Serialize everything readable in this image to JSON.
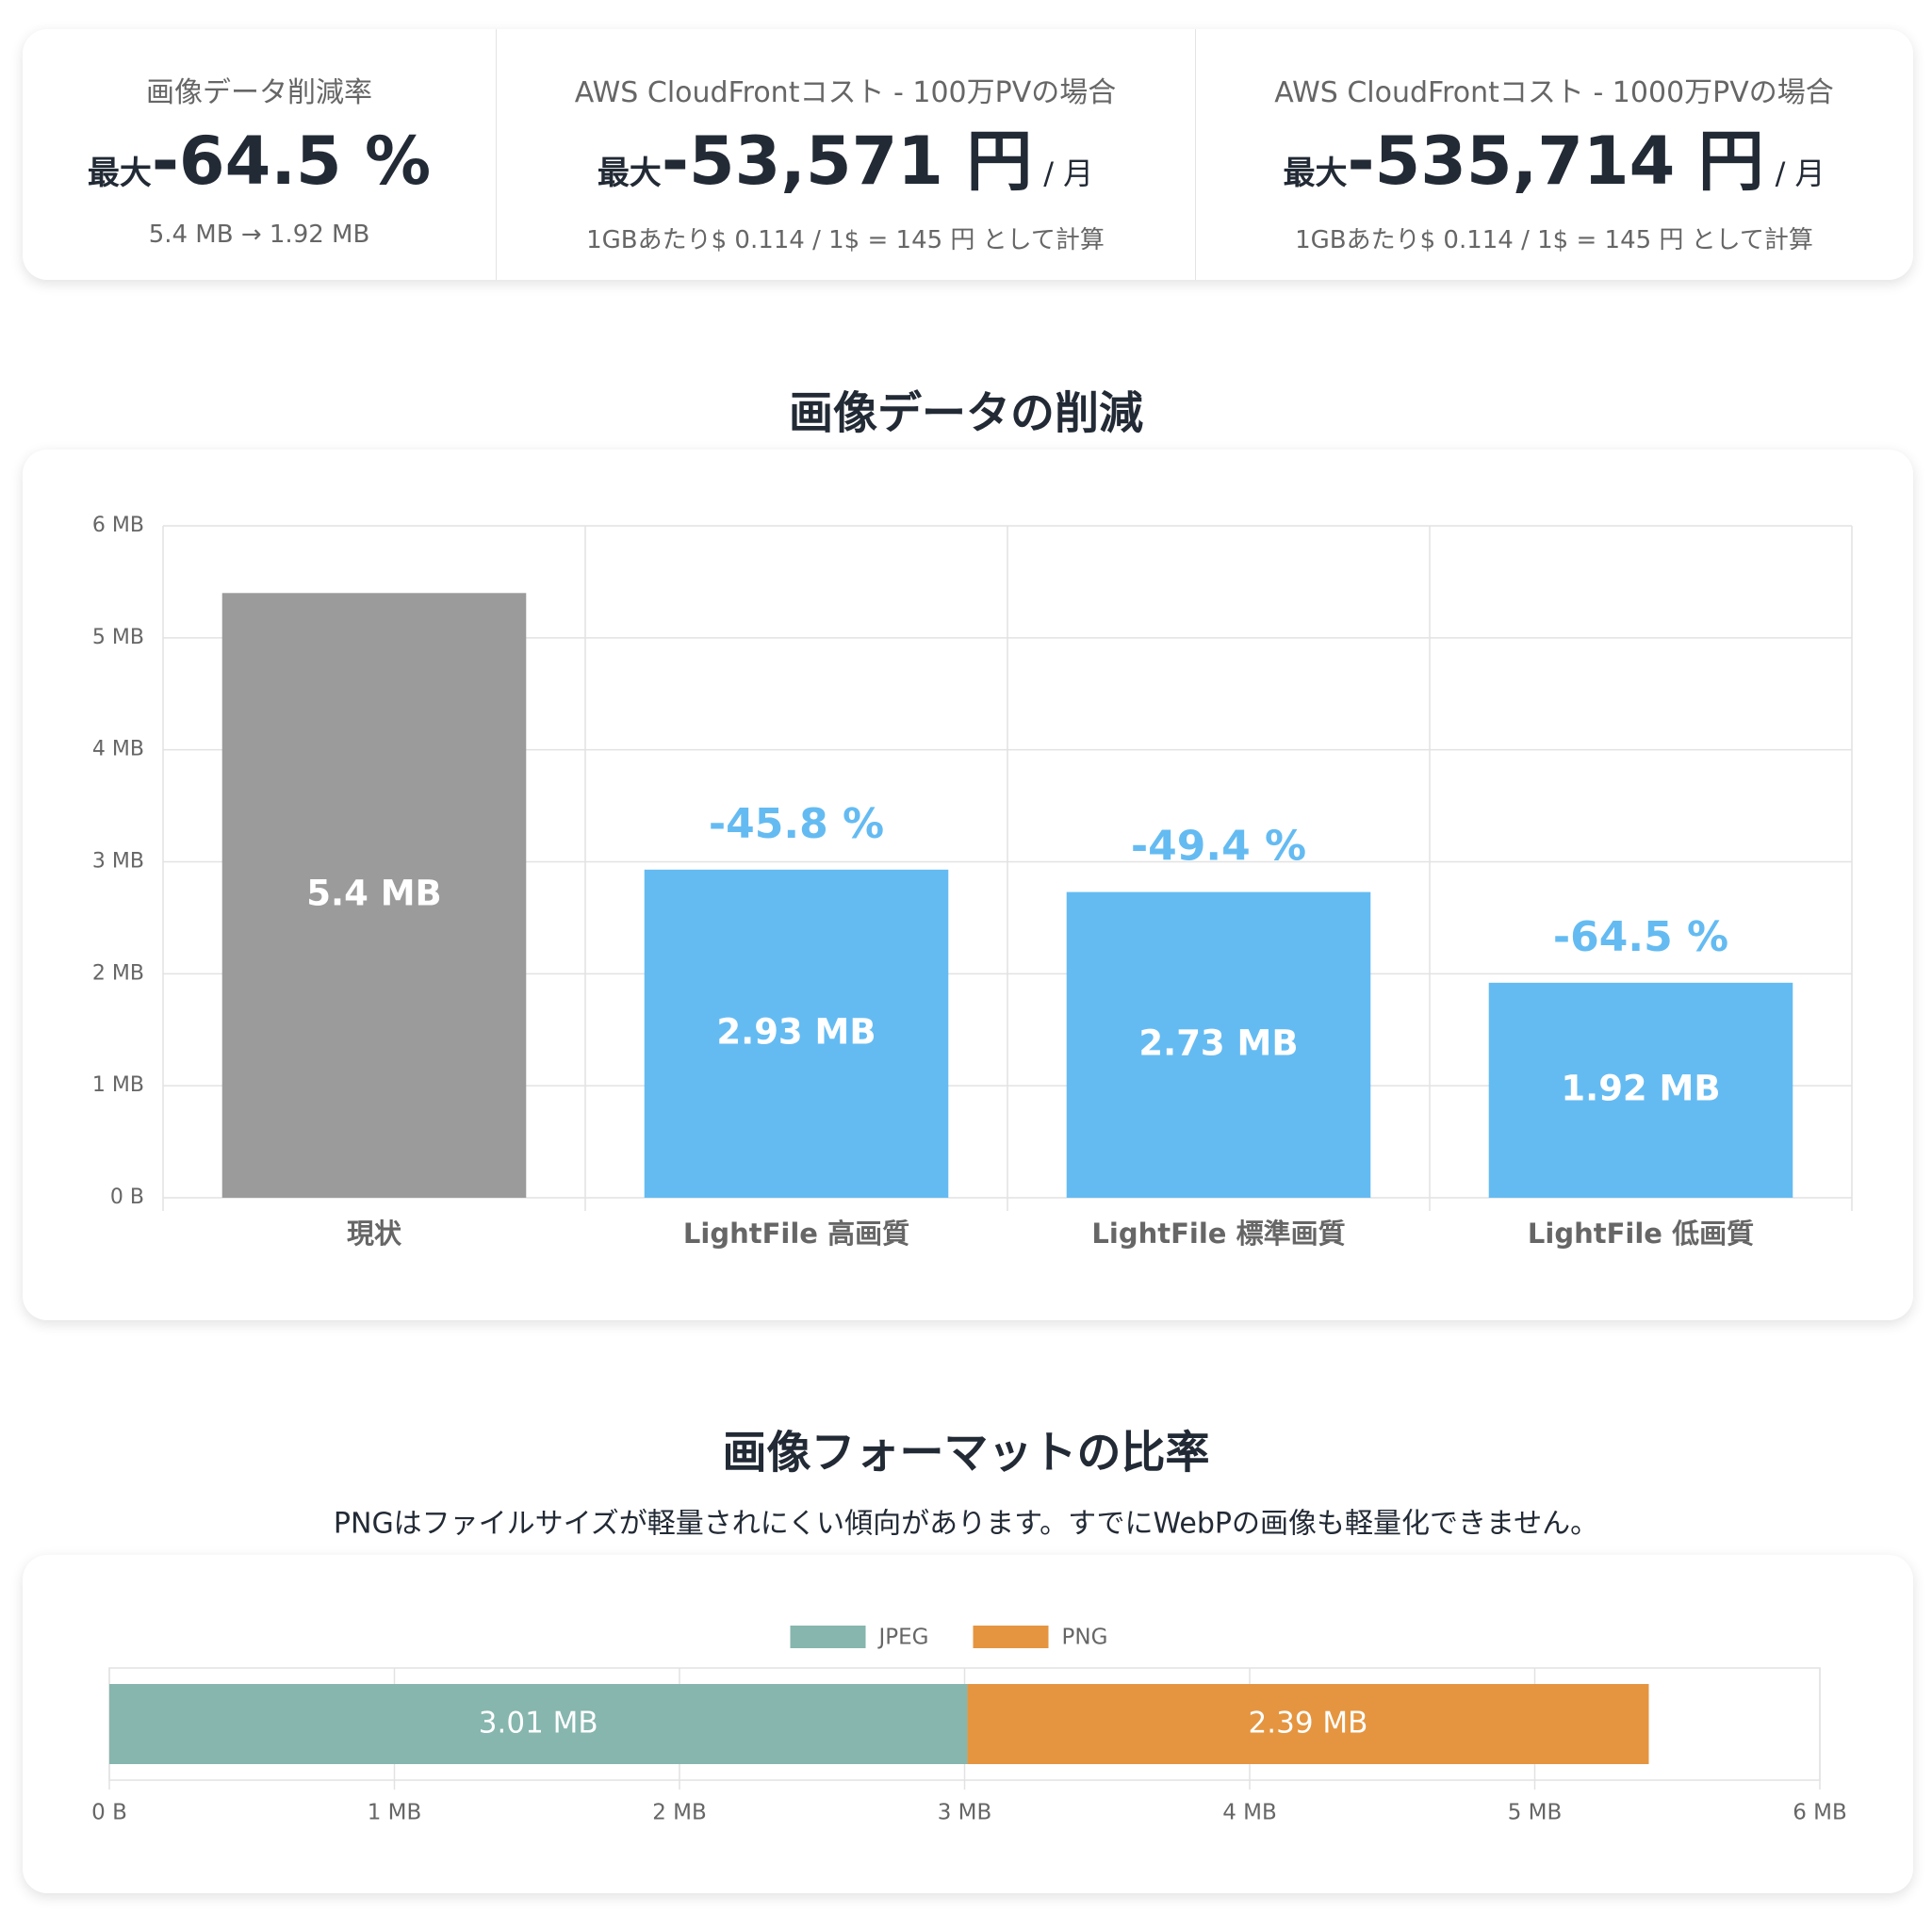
{
  "stats": [
    {
      "title": "画像データ削減率",
      "prefix": "最大",
      "value": "-64.5 %",
      "note": "5.4 MB → 1.92 MB"
    },
    {
      "title": "AWS CloudFrontコスト - 100万PVの場合",
      "prefix": "最大",
      "value": "-53,571 円",
      "unit": "/ 月",
      "note": "1GBあたり$ 0.114 / 1$ = 145 円 として計算"
    },
    {
      "title": "AWS CloudFrontコスト - 1000万PVの場合",
      "prefix": "最大",
      "value": "-535,714 円",
      "unit": "/ 月",
      "note": "1GBあたり$ 0.114 / 1$ = 145 円 として計算"
    }
  ],
  "chart_data": [
    {
      "type": "bar",
      "title": "画像データの削減",
      "categories": [
        "現状",
        "LightFile 高画質",
        "LightFile 標準画質",
        "LightFile 低画質"
      ],
      "values": [
        5.4,
        2.93,
        2.73,
        1.92
      ],
      "value_labels": [
        "5.4 MB",
        "2.93 MB",
        "2.73 MB",
        "1.92 MB"
      ],
      "change_labels": [
        null,
        "-45.8 %",
        "-49.4 %",
        "-64.5 %"
      ],
      "colors": [
        "#9b9b9b",
        "#64bbf2",
        "#64bbf2",
        "#64bbf2"
      ],
      "ylim": [
        0,
        6
      ],
      "yticks": [
        {
          "value": 0,
          "label": "0 B"
        },
        {
          "value": 1,
          "label": "1 MB"
        },
        {
          "value": 2,
          "label": "2 MB"
        },
        {
          "value": 3,
          "label": "3 MB"
        },
        {
          "value": 4,
          "label": "4 MB"
        },
        {
          "value": 5,
          "label": "5 MB"
        },
        {
          "value": 6,
          "label": "6 MB"
        }
      ],
      "grid": true
    },
    {
      "type": "stacked-hbar",
      "title": "画像フォーマットの比率",
      "subtitle": "PNGはファイルサイズが軽量されにくい傾向があります。すでにWebPの画像も軽量化できません。",
      "series": [
        {
          "name": "JPEG",
          "color": "#86b6ae",
          "values": [
            3.01
          ],
          "value_labels": [
            "3.01 MB"
          ]
        },
        {
          "name": "PNG",
          "color": "#e59540",
          "values": [
            2.39
          ],
          "value_labels": [
            "2.39 MB"
          ]
        }
      ],
      "xlim": [
        0,
        6
      ],
      "xticks": [
        {
          "value": 0,
          "label": "0 B"
        },
        {
          "value": 1,
          "label": "1 MB"
        },
        {
          "value": 2,
          "label": "2 MB"
        },
        {
          "value": 3,
          "label": "3 MB"
        },
        {
          "value": 4,
          "label": "4 MB"
        },
        {
          "value": 5,
          "label": "5 MB"
        },
        {
          "value": 6,
          "label": "6 MB"
        }
      ],
      "grid": true,
      "legend": "top"
    }
  ]
}
